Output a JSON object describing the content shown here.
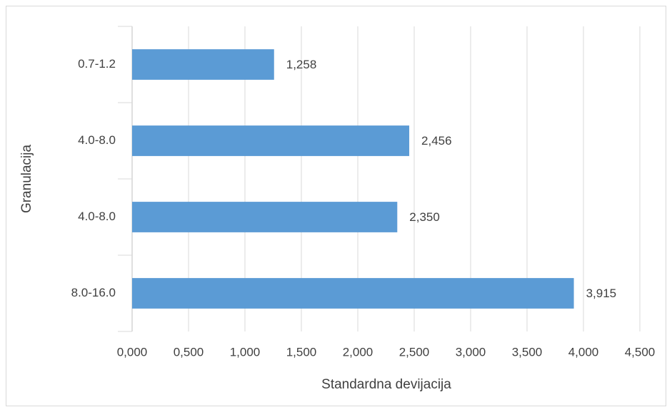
{
  "chart_data": {
    "type": "hbar",
    "categories": [
      "0.7-1.2",
      "4.0-8.0",
      "4.0-8.0",
      "8.0-16.0"
    ],
    "values": [
      1.258,
      2.456,
      2.35,
      3.915
    ],
    "value_labels": [
      "1,258",
      "2,456",
      "2,350",
      "3,915"
    ],
    "color": "#5b9bd5",
    "xlabel": "Standardna devijacija",
    "ylabel": "Granulacija",
    "xlim": [
      0,
      4.5
    ],
    "xticks": [
      {
        "value": 0,
        "label": "0,000"
      },
      {
        "value": 0.5,
        "label": "0,500"
      },
      {
        "value": 1,
        "label": "1,000"
      },
      {
        "value": 1.5,
        "label": "1,500"
      },
      {
        "value": 2,
        "label": "2,000"
      },
      {
        "value": 2.5,
        "label": "2,500"
      },
      {
        "value": 3,
        "label": "3,000"
      },
      {
        "value": 3.5,
        "label": "3,500"
      },
      {
        "value": 4,
        "label": "4,000"
      },
      {
        "value": 4.5,
        "label": "4,500"
      }
    ],
    "grid": true
  }
}
